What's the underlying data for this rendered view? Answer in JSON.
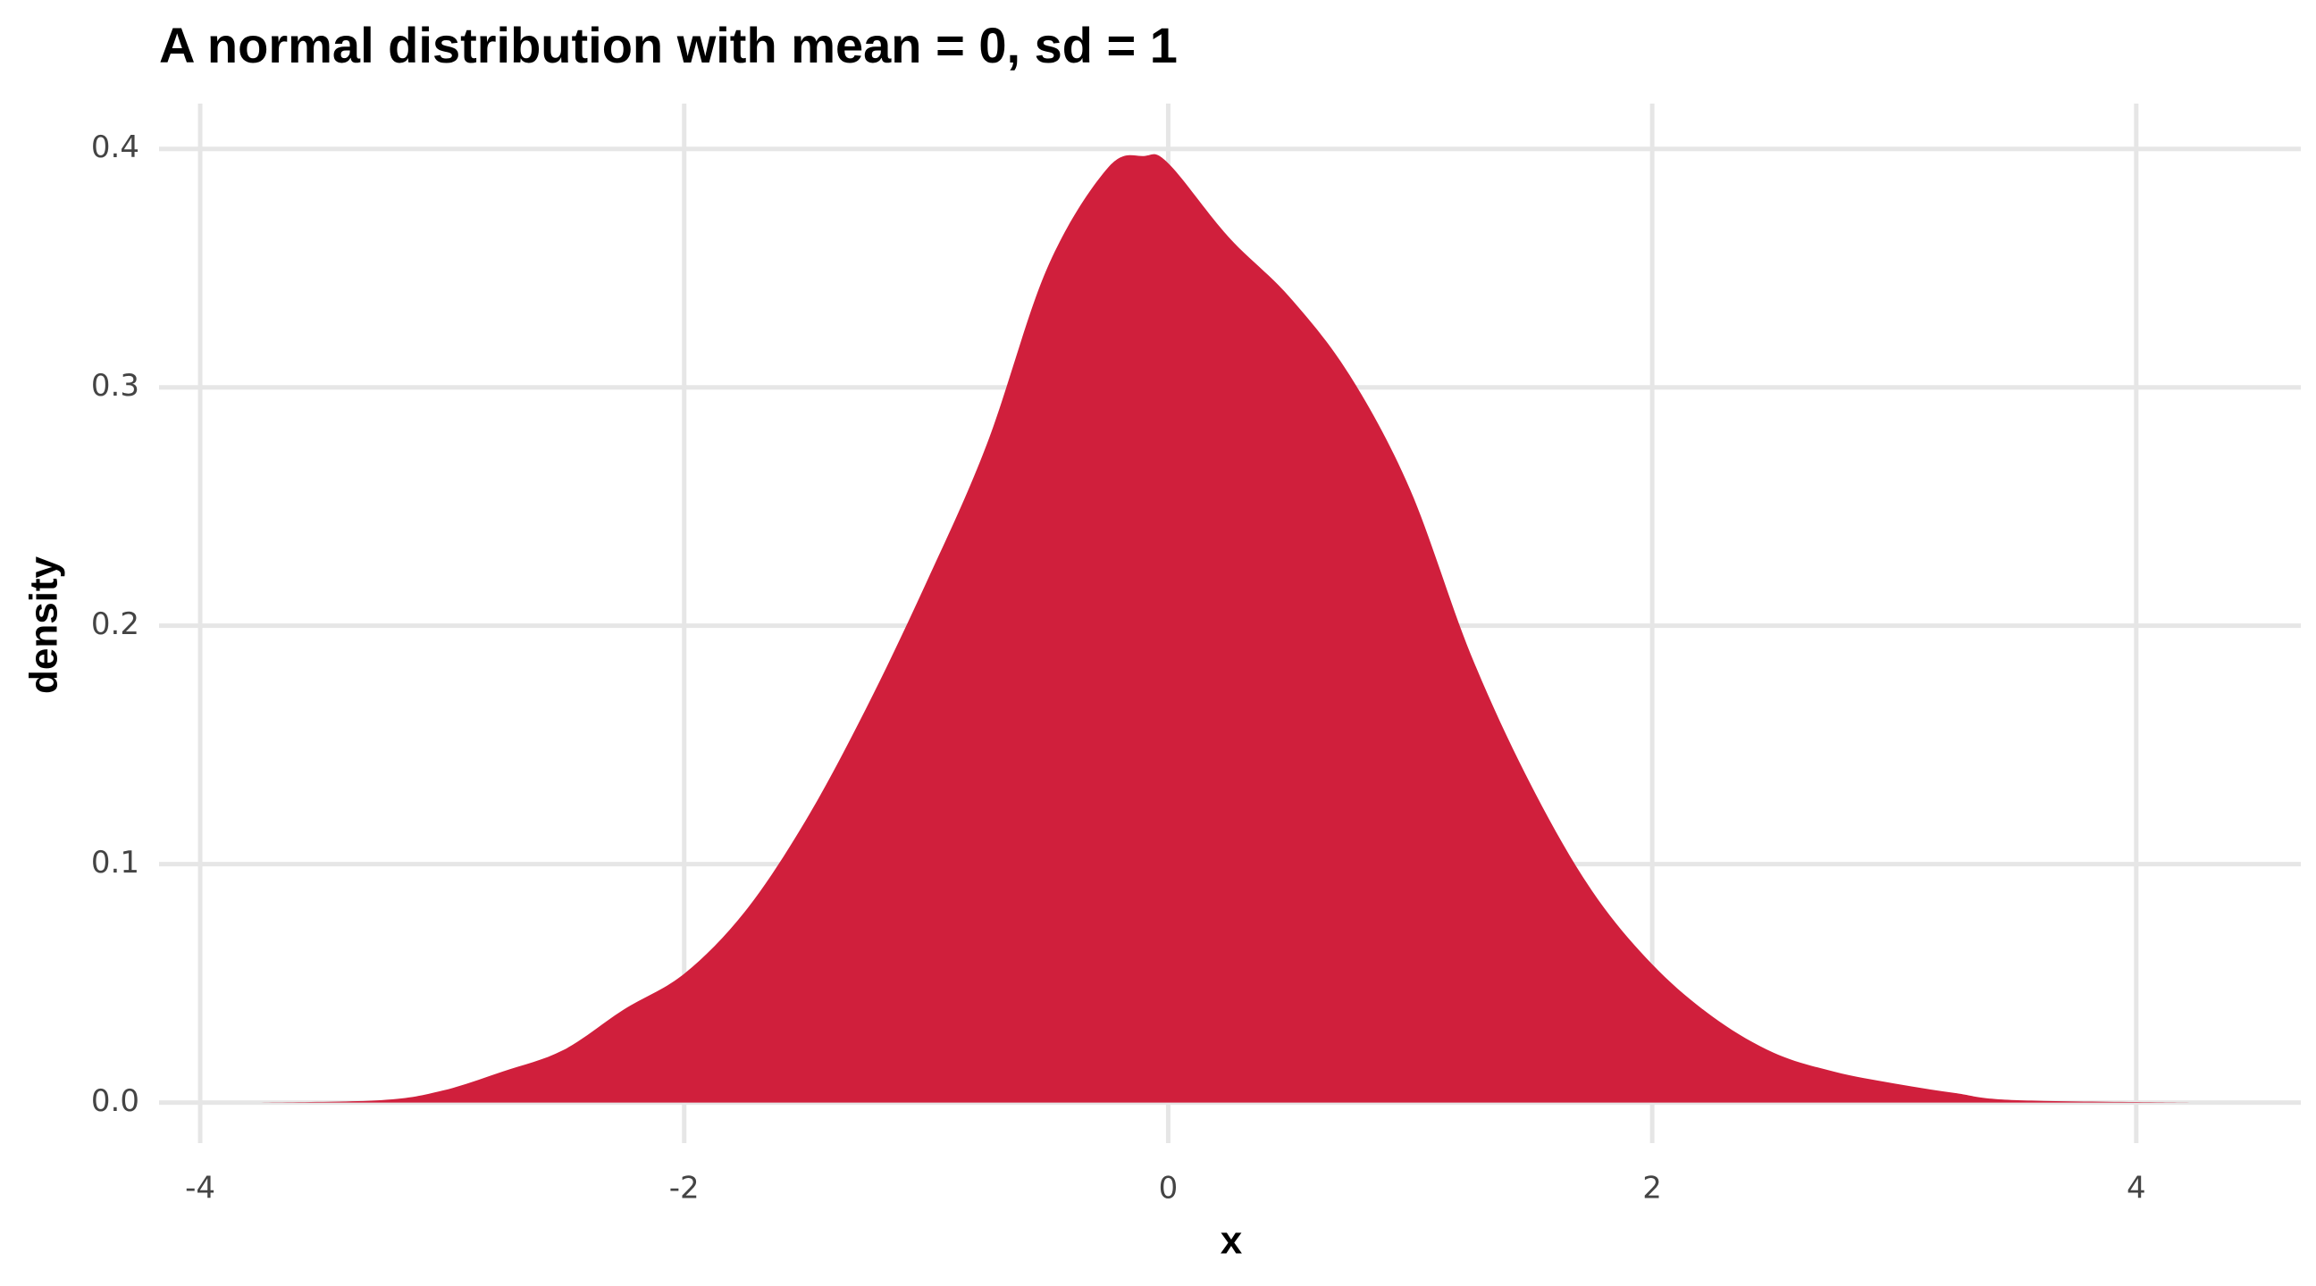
{
  "chart_data": {
    "type": "area",
    "title": "A normal distribution with mean = 0, sd = 1",
    "x_label": "x",
    "y_label": "density",
    "x": [
      -3.76,
      -3.25,
      -3.0,
      -2.75,
      -2.5,
      -2.25,
      -2.0,
      -1.75,
      -1.5,
      -1.25,
      -1.0,
      -0.75,
      -0.5,
      -0.25,
      -0.1,
      0,
      0.25,
      0.5,
      0.75,
      1.0,
      1.25,
      1.5,
      1.75,
      2.0,
      2.25,
      2.5,
      2.75,
      3.0,
      3.25,
      3.5,
      4.25
    ],
    "values": [
      0,
      0.001,
      0.005,
      0.013,
      0.022,
      0.039,
      0.054,
      0.08,
      0.118,
      0.165,
      0.218,
      0.276,
      0.35,
      0.392,
      0.397,
      0.394,
      0.363,
      0.338,
      0.305,
      0.257,
      0.188,
      0.133,
      0.089,
      0.058,
      0.036,
      0.021,
      0.013,
      0.008,
      0.004,
      0.001,
      0
    ],
    "color": "#d01f3c",
    "xlim": [
      -4.17,
      4.68
    ],
    "ylim": [
      -0.017,
      0.419
    ],
    "xticks": [
      -4,
      -2,
      0,
      2,
      4
    ],
    "yticks": [
      {
        "value": 0,
        "label": "0.0"
      },
      0.1,
      0.2,
      0.3,
      0.4
    ],
    "grid": true
  }
}
